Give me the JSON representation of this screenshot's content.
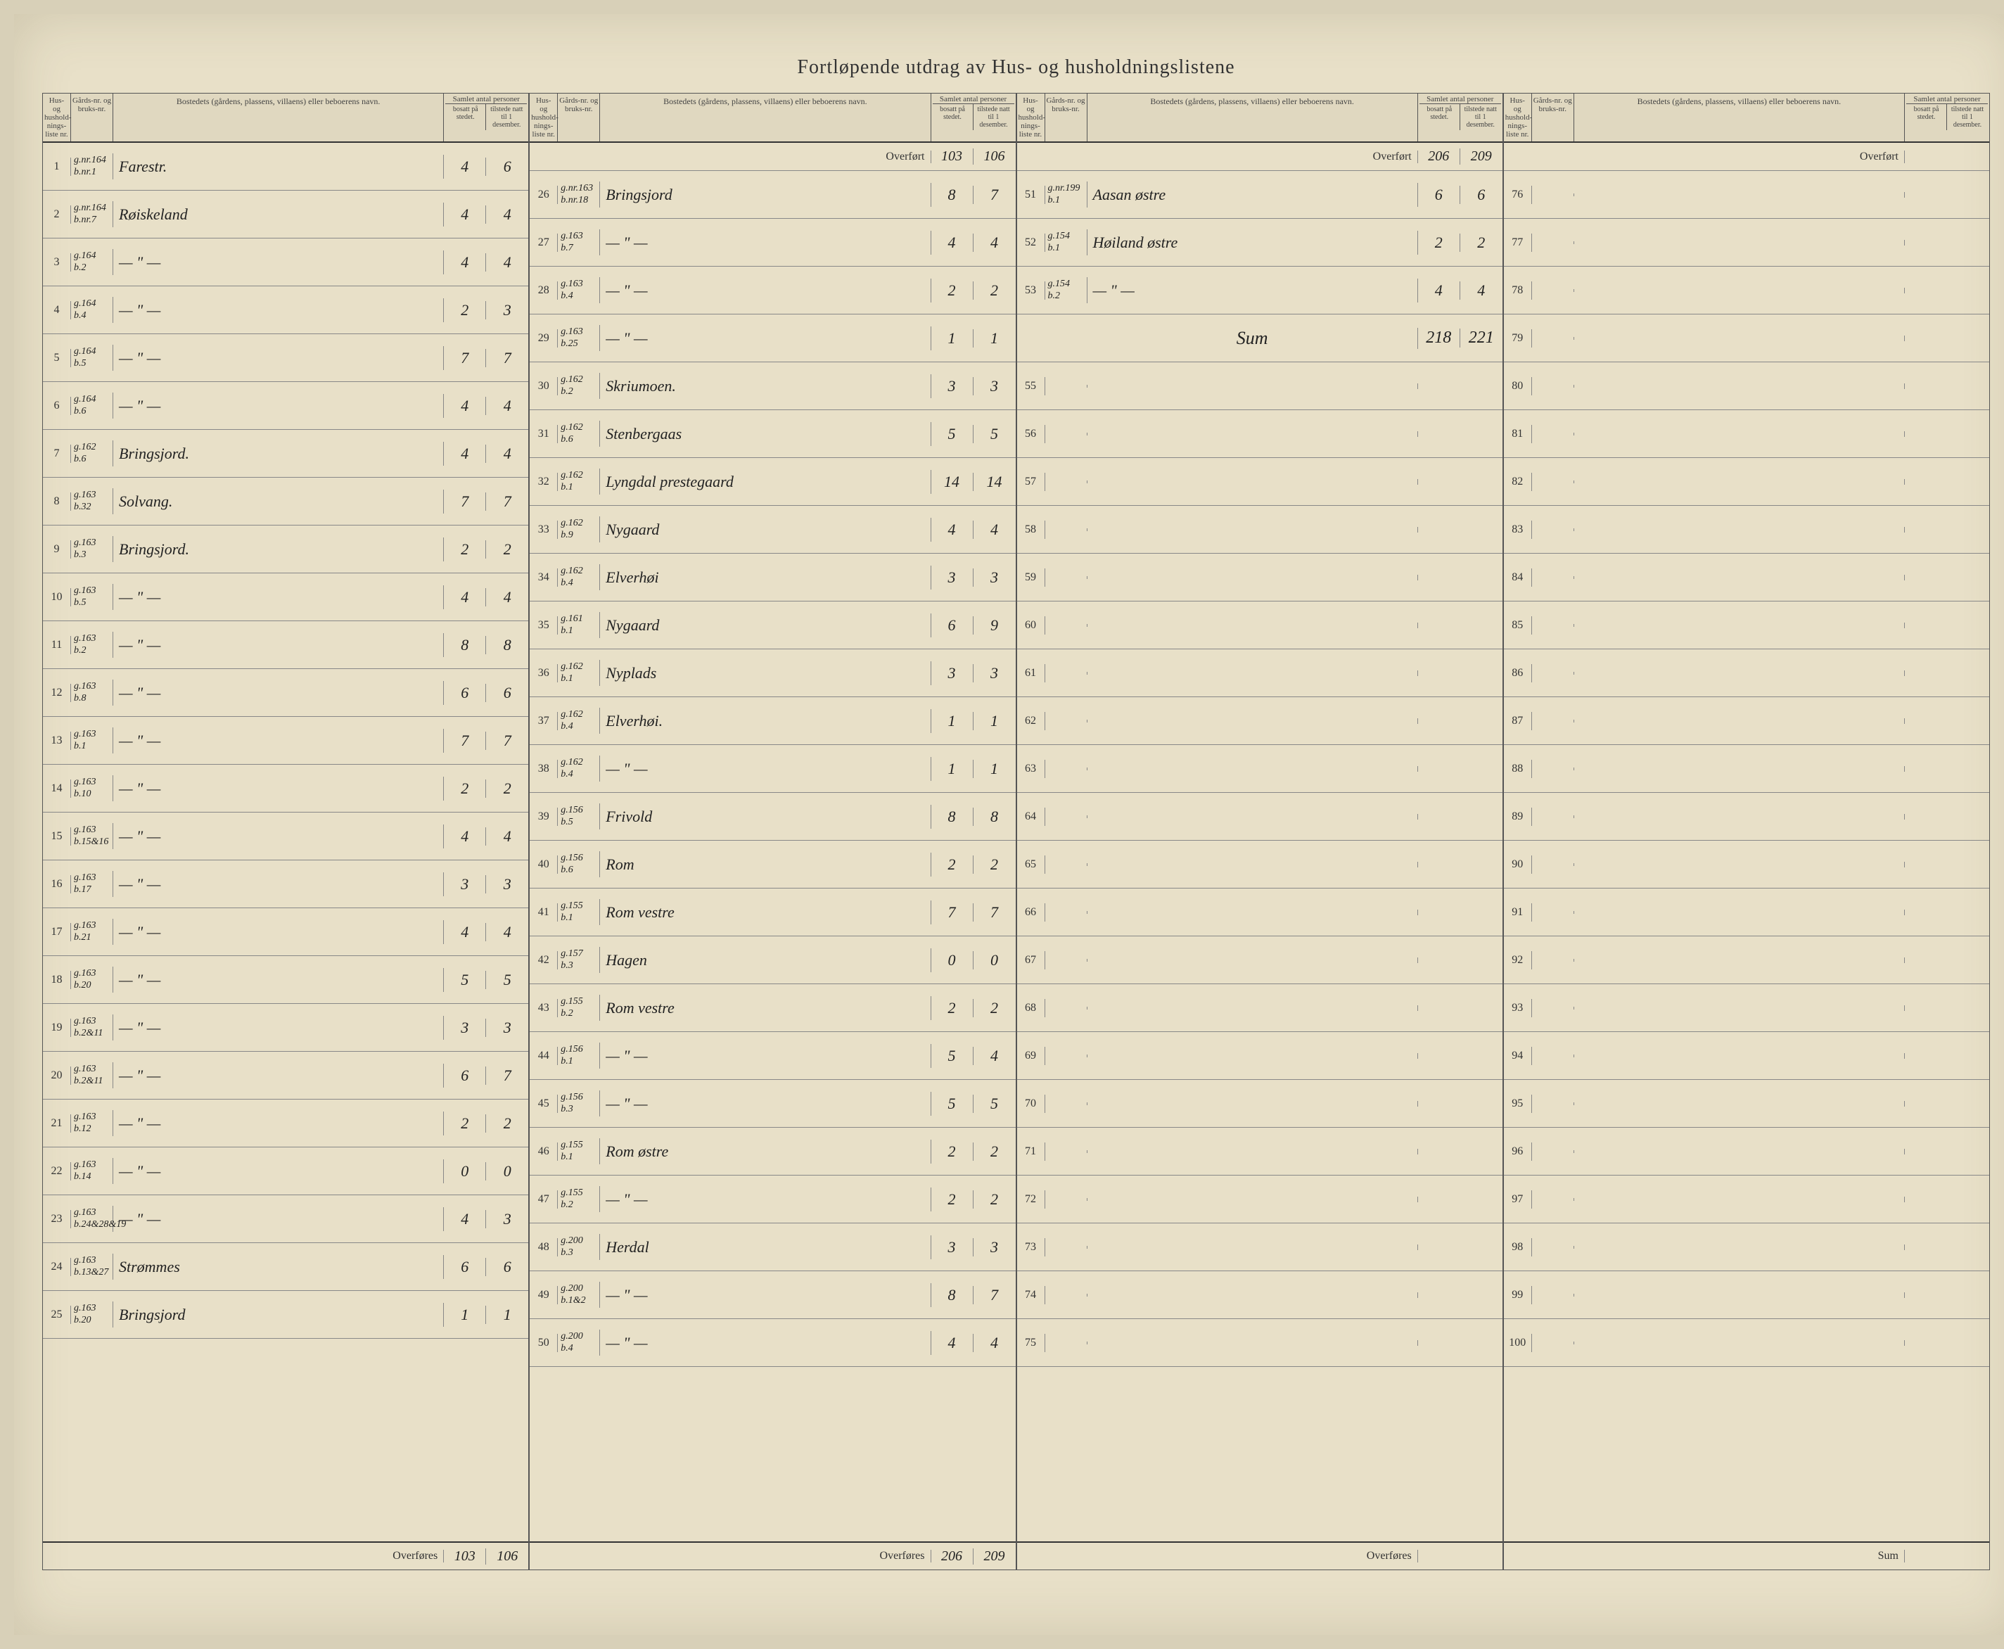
{
  "title": "Fortløpende utdrag    av Hus- og husholdningslistene",
  "headers": {
    "hus_nr": "Hus- og hushold-nings-liste nr.",
    "gards_nr": "Gårds-nr. og bruks-nr.",
    "bostedet": "Bostedets (gårdens, plassens, villaens) eller beboerens navn.",
    "samlet": "Samlet antal personer",
    "bosatt": "bosatt på stedet.",
    "tilstede": "tilstede natt til 1 desember."
  },
  "overfort_label": "Overført",
  "overfores_label": "Overføres",
  "sum_label": "Sum",
  "col1": {
    "rows": [
      {
        "n": "1",
        "g": "g.nr.164\nb.nr.1",
        "name": "Farestr.",
        "b": "4",
        "t": "6"
      },
      {
        "n": "2",
        "g": "g.nr.164\nb.nr.7",
        "name": "Røiskeland",
        "b": "4",
        "t": "4"
      },
      {
        "n": "3",
        "g": "g.164\nb.2",
        "name": "— \" —",
        "b": "4",
        "t": "4"
      },
      {
        "n": "4",
        "g": "g.164\nb.4",
        "name": "— \" —",
        "b": "2",
        "t": "3"
      },
      {
        "n": "5",
        "g": "g.164\nb.5",
        "name": "— \" —",
        "b": "7",
        "t": "7"
      },
      {
        "n": "6",
        "g": "g.164\nb.6",
        "name": "— \" —",
        "b": "4",
        "t": "4"
      },
      {
        "n": "7",
        "g": "g.162\nb.6",
        "name": "Bringsjord.",
        "b": "4",
        "t": "4"
      },
      {
        "n": "8",
        "g": "g.163\nb.32",
        "name": "Solvang.",
        "b": "7",
        "t": "7"
      },
      {
        "n": "9",
        "g": "g.163\nb.3",
        "name": "Bringsjord.",
        "b": "2",
        "t": "2"
      },
      {
        "n": "10",
        "g": "g.163\nb.5",
        "name": "— \" —",
        "b": "4",
        "t": "4"
      },
      {
        "n": "11",
        "g": "g.163\nb.2",
        "name": "— \" —",
        "b": "8",
        "t": "8"
      },
      {
        "n": "12",
        "g": "g.163\nb.8",
        "name": "— \" —",
        "b": "6",
        "t": "6"
      },
      {
        "n": "13",
        "g": "g.163\nb.1",
        "name": "— \" —",
        "b": "7",
        "t": "7"
      },
      {
        "n": "14",
        "g": "g.163\nb.10",
        "name": "— \" —",
        "b": "2",
        "t": "2"
      },
      {
        "n": "15",
        "g": "g.163\nb.15&16",
        "name": "— \" —",
        "b": "4",
        "t": "4"
      },
      {
        "n": "16",
        "g": "g.163\nb.17",
        "name": "— \" —",
        "b": "3",
        "t": "3"
      },
      {
        "n": "17",
        "g": "g.163\nb.21",
        "name": "— \" —",
        "b": "4",
        "t": "4"
      },
      {
        "n": "18",
        "g": "g.163\nb.20",
        "name": "— \" —",
        "b": "5",
        "t": "5"
      },
      {
        "n": "19",
        "g": "g.163\nb.2&11",
        "name": "— \" —",
        "b": "3",
        "t": "3"
      },
      {
        "n": "20",
        "g": "g.163\nb.2&11",
        "name": "— \" —",
        "b": "6",
        "t": "7"
      },
      {
        "n": "21",
        "g": "g.163\nb.12",
        "name": "— \" —",
        "b": "2",
        "t": "2"
      },
      {
        "n": "22",
        "g": "g.163\nb.14",
        "name": "— \" —",
        "b": "0",
        "t": "0"
      },
      {
        "n": "23",
        "g": "g.163\nb.24&28&19",
        "name": "— \" —",
        "b": "4",
        "t": "3"
      },
      {
        "n": "24",
        "g": "g.163\nb.13&27",
        "name": "Strømmes",
        "b": "6",
        "t": "6"
      },
      {
        "n": "25",
        "g": "g.163\nb.20",
        "name": "Bringsjord",
        "b": "1",
        "t": "1"
      }
    ],
    "overfores": {
      "b": "103",
      "t": "106"
    }
  },
  "col2": {
    "overfort": {
      "b": "103",
      "t": "106"
    },
    "rows": [
      {
        "n": "26",
        "g": "g.nr.163\nb.nr.18",
        "name": "Bringsjord",
        "b": "8",
        "t": "7"
      },
      {
        "n": "27",
        "g": "g.163\nb.7",
        "name": "— \" —",
        "b": "4",
        "t": "4"
      },
      {
        "n": "28",
        "g": "g.163\nb.4",
        "name": "— \" —",
        "b": "2",
        "t": "2"
      },
      {
        "n": "29",
        "g": "g.163\nb.25",
        "name": "— \" —",
        "b": "1",
        "t": "1"
      },
      {
        "n": "30",
        "g": "g.162\nb.2",
        "name": "Skriumoen.",
        "b": "3",
        "t": "3"
      },
      {
        "n": "31",
        "g": "g.162\nb.6",
        "name": "Stenbergaas",
        "b": "5",
        "t": "5"
      },
      {
        "n": "32",
        "g": "g.162\nb.1",
        "name": "Lyngdal prestegaard",
        "b": "14",
        "t": "14"
      },
      {
        "n": "33",
        "g": "g.162\nb.9",
        "name": "Nygaard",
        "b": "4",
        "t": "4"
      },
      {
        "n": "34",
        "g": "g.162\nb.4",
        "name": "Elverhøi",
        "b": "3",
        "t": "3"
      },
      {
        "n": "35",
        "g": "g.161\nb.1",
        "name": "Nygaard",
        "b": "6",
        "t": "9"
      },
      {
        "n": "36",
        "g": "g.162\nb.1",
        "name": "Nyplads",
        "b": "3",
        "t": "3"
      },
      {
        "n": "37",
        "g": "g.162\nb.4",
        "name": "Elverhøi.",
        "b": "1",
        "t": "1"
      },
      {
        "n": "38",
        "g": "g.162\nb.4",
        "name": "— \" —",
        "b": "1",
        "t": "1"
      },
      {
        "n": "39",
        "g": "g.156\nb.5",
        "name": "Frivold",
        "b": "8",
        "t": "8"
      },
      {
        "n": "40",
        "g": "g.156\nb.6",
        "name": "Rom",
        "b": "2",
        "t": "2"
      },
      {
        "n": "41",
        "g": "g.155\nb.1",
        "name": "Rom vestre",
        "b": "7",
        "t": "7"
      },
      {
        "n": "42",
        "g": "g.157\nb.3",
        "name": "Hagen",
        "b": "0",
        "t": "0"
      },
      {
        "n": "43",
        "g": "g.155\nb.2",
        "name": "Rom vestre",
        "b": "2",
        "t": "2"
      },
      {
        "n": "44",
        "g": "g.156\nb.1",
        "name": "— \" —",
        "b": "5",
        "t": "4"
      },
      {
        "n": "45",
        "g": "g.156\nb.3",
        "name": "— \" —",
        "b": "5",
        "t": "5"
      },
      {
        "n": "46",
        "g": "g.155\nb.1",
        "name": "Rom østre",
        "b": "2",
        "t": "2"
      },
      {
        "n": "47",
        "g": "g.155\nb.2",
        "name": "— \" —",
        "b": "2",
        "t": "2"
      },
      {
        "n": "48",
        "g": "g.200\nb.3",
        "name": "Herdal",
        "b": "3",
        "t": "3"
      },
      {
        "n": "49",
        "g": "g.200\nb.1&2",
        "name": "— \" —",
        "b": "8",
        "t": "7"
      },
      {
        "n": "50",
        "g": "g.200\nb.4",
        "name": "— \" —",
        "b": "4",
        "t": "4"
      }
    ],
    "overfores": {
      "b": "206",
      "t": "209"
    }
  },
  "col3": {
    "overfort": {
      "b": "206",
      "t": "209"
    },
    "rows": [
      {
        "n": "51",
        "g": "g.nr.199\nb.1",
        "name": "Aasan østre",
        "b": "6",
        "t": "6"
      },
      {
        "n": "52",
        "g": "g.154\nb.1",
        "name": "Høiland østre",
        "b": "2",
        "t": "2"
      },
      {
        "n": "53",
        "g": "g.154\nb.2",
        "name": "— \" —",
        "b": "4",
        "t": "4"
      }
    ],
    "sum": {
      "label": "Sum",
      "b": "218",
      "t": "221"
    },
    "empty_rows": [
      "55",
      "56",
      "57",
      "58",
      "59",
      "60",
      "61",
      "62",
      "63",
      "64",
      "65",
      "66",
      "67",
      "68",
      "69",
      "70",
      "71",
      "72",
      "73",
      "74",
      "75"
    ]
  },
  "col4": {
    "empty_rows": [
      "76",
      "77",
      "78",
      "79",
      "80",
      "81",
      "82",
      "83",
      "84",
      "85",
      "86",
      "87",
      "88",
      "89",
      "90",
      "91",
      "92",
      "93",
      "94",
      "95",
      "96",
      "97",
      "98",
      "99",
      "100"
    ]
  }
}
